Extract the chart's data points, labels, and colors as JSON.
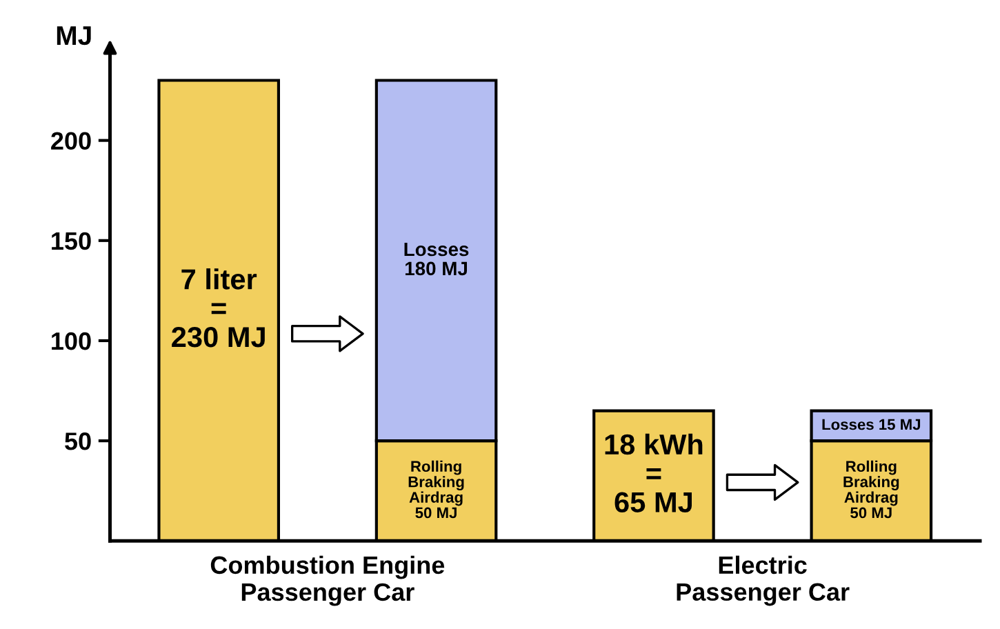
{
  "chart_data": {
    "type": "bar",
    "stacked": true,
    "ylabel": "MJ",
    "categories": [
      null,
      null,
      null,
      null
    ],
    "series": [
      {
        "colors": [
          "#f2cf5e",
          "#f2cf5e",
          "#f2cf5e",
          "#f2cf5e"
        ],
        "values": [
          230,
          50,
          65,
          50
        ],
        "value_labels": [
          "7 liter\n=\n230 MJ",
          "Rolling\nBraking\nAirdrag\n50 MJ",
          "18 kWh\n=\n65 MJ",
          "Rolling\nBraking\nAirdrag\n50 MJ"
        ]
      },
      {
        "colors": [
          "#b4bdf2",
          "#b4bdf2",
          "#b4bdf2",
          "#b4bdf2"
        ],
        "values": [
          null,
          180,
          null,
          15
        ],
        "value_labels": [
          null,
          "Losses\n180 MJ",
          null,
          "Losses 15 MJ"
        ]
      }
    ],
    "ylim": [
      0,
      245
    ],
    "yticks": [
      50,
      100,
      150,
      200
    ],
    "grid": false,
    "legend": false,
    "annotations": [
      "Combustion Engine\nPassenger Car",
      "Electric\nPassenger Car"
    ]
  }
}
